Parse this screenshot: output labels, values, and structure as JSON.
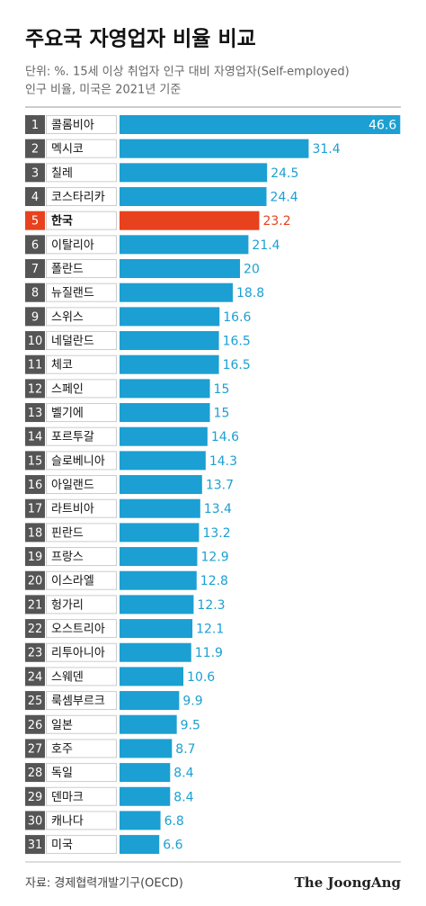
{
  "chart_data": {
    "type": "bar",
    "orientation": "horizontal",
    "title": "주요국 자영업자 비율 비교",
    "subtitle": [
      "단위: %. 15세 이상 취업자 인구 대비 자영업자(Self-employed)",
      "인구 비율, 미국은 2021년 기준"
    ],
    "ranks": [
      1,
      2,
      3,
      4,
      5,
      6,
      7,
      8,
      9,
      10,
      11,
      12,
      13,
      14,
      15,
      16,
      17,
      18,
      19,
      20,
      21,
      22,
      23,
      24,
      25,
      26,
      27,
      28,
      29,
      30,
      31
    ],
    "categories": [
      "콜롬비아",
      "멕시코",
      "칠레",
      "코스타리카",
      "한국",
      "이탈리아",
      "폴란드",
      "뉴질랜드",
      "스위스",
      "네덜란드",
      "체코",
      "스페인",
      "벨기에",
      "포르투갈",
      "슬로베니아",
      "아일랜드",
      "라트비아",
      "핀란드",
      "프랑스",
      "이스라엘",
      "헝가리",
      "오스트리아",
      "리투아니아",
      "스웨덴",
      "룩셈부르크",
      "일본",
      "호주",
      "독일",
      "덴마크",
      "캐나다",
      "미국"
    ],
    "values": [
      46.6,
      31.4,
      24.5,
      24.4,
      23.2,
      21.4,
      20,
      18.8,
      16.6,
      16.5,
      16.5,
      15,
      15,
      14.6,
      14.3,
      13.7,
      13.4,
      13.2,
      12.9,
      12.8,
      12.3,
      12.1,
      11.9,
      10.6,
      9.9,
      9.5,
      8.7,
      8.4,
      8.4,
      6.8,
      6.6
    ],
    "color": "#1c9fd2",
    "highlight": {
      "category": "한국",
      "color": "#e8411d"
    },
    "xlim": [
      0,
      47
    ],
    "source": "자료: 경제협력개발기구(OECD)",
    "brand": "The JoongAng"
  }
}
